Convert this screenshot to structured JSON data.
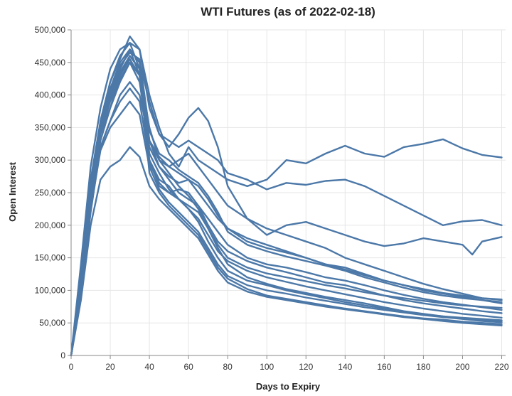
{
  "chart_data": {
    "type": "line",
    "title": "WTI Futures (as of 2022-02-18)",
    "xlabel": "Days to Expiry",
    "ylabel": "Open Interest",
    "xlim": [
      0,
      222
    ],
    "ylim": [
      0,
      500000
    ],
    "x_ticks": [
      0,
      20,
      40,
      60,
      80,
      100,
      120,
      140,
      160,
      180,
      200,
      220
    ],
    "y_ticks": [
      0,
      50000,
      100000,
      150000,
      200000,
      250000,
      300000,
      350000,
      400000,
      450000,
      500000
    ],
    "x_tick_labels": [
      "0",
      "20",
      "40",
      "60",
      "80",
      "100",
      "120",
      "140",
      "160",
      "180",
      "200",
      "220"
    ],
    "y_tick_labels": [
      "0",
      "50,000",
      "100,000",
      "150,000",
      "200,000",
      "250,000",
      "300,000",
      "350,000",
      "400,000",
      "450,000",
      "500,000"
    ],
    "grid": true,
    "legend": "none",
    "line_color": "#4c78a8",
    "series": [
      {
        "x": [
          0,
          5,
          10,
          15,
          20,
          25,
          30,
          35,
          40,
          45,
          50,
          55,
          60,
          65,
          70,
          75,
          80,
          90,
          100,
          110,
          120,
          130,
          140,
          150,
          160,
          170,
          180,
          190,
          200,
          210,
          220
        ],
        "y": [
          0,
          140000,
          290000,
          380000,
          440000,
          470000,
          480000,
          470000,
          380000,
          340000,
          330000,
          320000,
          330000,
          320000,
          310000,
          300000,
          280000,
          270000,
          255000,
          265000,
          262000,
          268000,
          270000,
          260000,
          245000,
          230000,
          215000,
          200000,
          206000,
          208000,
          200000
        ]
      },
      {
        "x": [
          0,
          5,
          10,
          15,
          20,
          25,
          30,
          35,
          40,
          45,
          50,
          55,
          60,
          65,
          70,
          75,
          80,
          90,
          100,
          110,
          120,
          130,
          140,
          150,
          160,
          170,
          180,
          190,
          200,
          210,
          220
        ],
        "y": [
          0,
          120000,
          270000,
          360000,
          420000,
          455000,
          490000,
          470000,
          400000,
          350000,
          310000,
          290000,
          320000,
          300000,
          290000,
          280000,
          270000,
          260000,
          270000,
          300000,
          295000,
          310000,
          322000,
          310000,
          305000,
          320000,
          325000,
          332000,
          318000,
          308000,
          304000
        ]
      },
      {
        "x": [
          0,
          5,
          10,
          15,
          20,
          25,
          30,
          35,
          40,
          45,
          50,
          55,
          60,
          65,
          70,
          75,
          80,
          90,
          100,
          110,
          120,
          130,
          140,
          150,
          160,
          170,
          180,
          190,
          200,
          205,
          210,
          220
        ],
        "y": [
          0,
          110000,
          250000,
          350000,
          400000,
          440000,
          470000,
          450000,
          390000,
          340000,
          320000,
          340000,
          365000,
          380000,
          360000,
          320000,
          260000,
          210000,
          185000,
          200000,
          205000,
          195000,
          185000,
          175000,
          168000,
          172000,
          180000,
          175000,
          170000,
          155000,
          175000,
          182000
        ]
      },
      {
        "x": [
          0,
          5,
          10,
          15,
          20,
          25,
          30,
          35,
          40,
          45,
          50,
          55,
          60,
          65,
          70,
          75,
          80,
          90,
          100,
          110,
          120,
          130,
          140,
          150,
          160,
          170,
          180,
          190,
          200,
          210,
          220
        ],
        "y": [
          0,
          100000,
          240000,
          340000,
          380000,
          430000,
          460000,
          440000,
          350000,
          300000,
          290000,
          300000,
          310000,
          290000,
          270000,
          250000,
          230000,
          210000,
          195000,
          185000,
          175000,
          165000,
          150000,
          140000,
          130000,
          120000,
          110000,
          102000,
          95000,
          88000,
          86000
        ]
      },
      {
        "x": [
          0,
          5,
          10,
          15,
          20,
          25,
          30,
          35,
          40,
          45,
          50,
          55,
          60,
          65,
          70,
          75,
          80,
          90,
          100,
          110,
          120,
          130,
          140,
          150,
          160,
          170,
          180,
          190,
          200,
          210,
          220
        ],
        "y": [
          0,
          90000,
          220000,
          320000,
          360000,
          400000,
          420000,
          400000,
          330000,
          290000,
          275000,
          265000,
          270000,
          250000,
          230000,
          210000,
          195000,
          175000,
          165000,
          158000,
          150000,
          140000,
          135000,
          125000,
          115000,
          108000,
          100000,
          95000,
          90000,
          85000,
          80000
        ]
      },
      {
        "x": [
          0,
          5,
          10,
          15,
          20,
          25,
          30,
          35,
          40,
          45,
          50,
          55,
          60,
          65,
          70,
          75,
          80,
          90,
          100,
          110,
          120,
          130,
          140,
          150,
          160,
          170,
          180,
          190,
          200,
          210,
          220
        ],
        "y": [
          0,
          95000,
          230000,
          330000,
          380000,
          420000,
          450000,
          430000,
          300000,
          260000,
          250000,
          255000,
          250000,
          230000,
          210000,
          190000,
          170000,
          150000,
          140000,
          135000,
          128000,
          120000,
          115000,
          108000,
          100000,
          93000,
          87000,
          82000,
          78000,
          74000,
          70000
        ]
      },
      {
        "x": [
          0,
          5,
          10,
          15,
          20,
          25,
          30,
          35,
          40,
          45,
          50,
          55,
          60,
          65,
          70,
          75,
          80,
          90,
          100,
          110,
          120,
          130,
          140,
          150,
          160,
          170,
          180,
          190,
          200,
          210,
          220
        ],
        "y": [
          0,
          100000,
          240000,
          340000,
          390000,
          425000,
          450000,
          420000,
          320000,
          290000,
          270000,
          250000,
          240000,
          230000,
          200000,
          175000,
          160000,
          145000,
          135000,
          128000,
          120000,
          112000,
          108000,
          100000,
          92000,
          85000,
          80000,
          76000,
          72000,
          68000,
          65000
        ]
      },
      {
        "x": [
          0,
          5,
          10,
          15,
          20,
          25,
          30,
          35,
          40,
          45,
          50,
          55,
          60,
          65,
          70,
          75,
          80,
          90,
          100,
          110,
          120,
          130,
          140,
          150,
          160,
          170,
          180,
          190,
          200,
          210,
          220
        ],
        "y": [
          0,
          105000,
          250000,
          350000,
          400000,
          440000,
          470000,
          450000,
          330000,
          300000,
          280000,
          260000,
          245000,
          225000,
          195000,
          165000,
          140000,
          120000,
          110000,
          102000,
          96000,
          90000,
          85000,
          80000,
          74000,
          68000,
          64000,
          60000,
          57000,
          55000,
          53000
        ]
      },
      {
        "x": [
          0,
          5,
          10,
          15,
          20,
          25,
          30,
          35,
          40,
          45,
          50,
          55,
          60,
          65,
          70,
          75,
          80,
          90,
          100,
          110,
          120,
          130,
          140,
          150,
          160,
          170,
          180,
          190,
          200,
          210,
          220
        ],
        "y": [
          0,
          115000,
          260000,
          360000,
          420000,
          460000,
          480000,
          440000,
          280000,
          250000,
          230000,
          215000,
          200000,
          185000,
          160000,
          135000,
          118000,
          102000,
          92000,
          87000,
          82000,
          77000,
          72000,
          68000,
          64000,
          60000,
          57000,
          55000,
          52000,
          50000,
          48000
        ]
      },
      {
        "x": [
          0,
          5,
          10,
          15,
          20,
          25,
          30,
          35,
          40,
          45,
          50,
          55,
          60,
          65,
          70,
          75,
          80,
          90,
          100,
          110,
          120,
          130,
          140,
          150,
          160,
          170,
          180,
          190,
          200,
          210,
          220
        ],
        "y": [
          0,
          110000,
          255000,
          355000,
          410000,
          450000,
          470000,
          430000,
          310000,
          280000,
          255000,
          240000,
          225000,
          205000,
          175000,
          150000,
          130000,
          115000,
          108000,
          100000,
          94000,
          88000,
          82000,
          77000,
          72000,
          67000,
          63000,
          60000,
          58000,
          56000,
          54000
        ]
      },
      {
        "x": [
          0,
          5,
          10,
          15,
          20,
          25,
          30,
          35,
          40,
          45,
          50,
          55,
          60,
          65,
          70,
          75,
          80,
          90,
          100,
          110,
          120,
          130,
          140,
          150,
          160,
          170,
          180,
          190,
          200,
          210,
          220
        ],
        "y": [
          0,
          95000,
          230000,
          320000,
          360000,
          390000,
          410000,
          390000,
          300000,
          270000,
          260000,
          240000,
          225000,
          210000,
          185000,
          160000,
          145000,
          130000,
          120000,
          113000,
          106000,
          100000,
          94000,
          88000,
          82000,
          77000,
          72000,
          68000,
          64000,
          61000,
          58000
        ]
      },
      {
        "x": [
          0,
          5,
          10,
          15,
          20,
          25,
          30,
          35,
          40,
          45,
          50,
          55,
          60,
          65,
          70,
          75,
          80,
          90,
          100,
          110,
          120,
          130,
          140,
          150,
          160,
          170,
          180,
          190,
          200,
          210,
          220
        ],
        "y": [
          0,
          85000,
          200000,
          270000,
          290000,
          300000,
          320000,
          305000,
          260000,
          240000,
          225000,
          210000,
          195000,
          180000,
          155000,
          130000,
          112000,
          98000,
          90000,
          85000,
          80000,
          75000,
          71000,
          67000,
          63000,
          59000,
          56000,
          53000,
          50000,
          48000,
          46000
        ]
      },
      {
        "x": [
          0,
          5,
          10,
          15,
          20,
          25,
          30,
          35,
          40,
          45,
          50,
          55,
          60,
          65,
          70,
          75,
          80,
          90,
          100,
          110,
          120,
          130,
          140,
          150,
          160,
          170,
          180,
          190,
          200,
          210,
          220
        ],
        "y": [
          0,
          100000,
          240000,
          340000,
          395000,
          430000,
          455000,
          430000,
          295000,
          265000,
          250000,
          240000,
          230000,
          220000,
          195000,
          170000,
          150000,
          135000,
          126000,
          120000,
          114000,
          108000,
          103000,
          97000,
          92000,
          88000,
          84000,
          80000,
          77000,
          75000,
          73000
        ]
      },
      {
        "x": [
          0,
          5,
          10,
          15,
          20,
          25,
          30,
          35,
          40,
          45,
          50,
          55,
          60,
          65,
          70,
          75,
          80,
          90,
          100,
          110,
          120,
          130,
          140,
          150,
          160,
          170,
          180,
          190,
          200,
          210,
          220
        ],
        "y": [
          0,
          110000,
          250000,
          345000,
          400000,
          435000,
          460000,
          440000,
          330000,
          305000,
          290000,
          280000,
          270000,
          260000,
          240000,
          215000,
          195000,
          180000,
          170000,
          160000,
          150000,
          140000,
          132000,
          123000,
          115000,
          108000,
          102000,
          96000,
          92000,
          88000,
          85000
        ]
      },
      {
        "x": [
          0,
          5,
          10,
          15,
          20,
          25,
          30,
          35,
          40,
          45,
          50,
          55,
          60,
          65,
          70,
          75,
          80,
          90,
          100,
          110,
          120,
          130,
          140,
          150,
          160,
          170,
          180,
          190,
          200,
          210,
          220
        ],
        "y": [
          0,
          90000,
          225000,
          315000,
          350000,
          370000,
          390000,
          370000,
          290000,
          255000,
          235000,
          220000,
          205000,
          190000,
          165000,
          140000,
          122000,
          108000,
          100000,
          95000,
          89000,
          84000,
          79000,
          74000,
          70000,
          66000,
          62000,
          59000,
          56000,
          53000,
          51000
        ]
      },
      {
        "x": [
          0,
          5,
          10,
          15,
          20,
          25,
          30,
          35,
          40,
          45,
          50,
          55,
          60,
          65,
          70,
          75,
          80,
          90,
          100,
          110,
          120,
          130,
          140,
          150,
          160,
          170,
          180,
          190,
          200,
          210,
          220
        ],
        "y": [
          0,
          105000,
          245000,
          345000,
          405000,
          445000,
          465000,
          455000,
          345000,
          310000,
          300000,
          285000,
          275000,
          265000,
          245000,
          220000,
          190000,
          170000,
          160000,
          152000,
          145000,
          138000,
          130000,
          120000,
          112000,
          104000,
          97000,
          92000,
          88000,
          85000,
          82000
        ]
      }
    ]
  }
}
